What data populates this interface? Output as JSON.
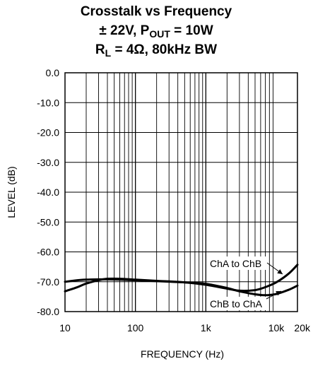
{
  "chart_data": {
    "type": "line",
    "title_lines": [
      {
        "parts": [
          {
            "t": "Crosstalk vs Frequency"
          }
        ]
      },
      {
        "parts": [
          {
            "t": "± 22V, P"
          },
          {
            "t": "OUT",
            "sub": true
          },
          {
            "t": " = 10W"
          }
        ]
      },
      {
        "parts": [
          {
            "t": "R"
          },
          {
            "t": "L",
            "sub": true
          },
          {
            "t": " = 4Ω, 80kHz BW"
          }
        ]
      }
    ],
    "xlabel": "FREQUENCY (Hz)",
    "ylabel": "LEVEL (dB)",
    "x_scale": "log",
    "xlim": [
      10,
      20000
    ],
    "ylim": [
      -80,
      0
    ],
    "grid": true,
    "x_ticks": [
      {
        "value": 10,
        "label": "10"
      },
      {
        "value": 100,
        "label": "100"
      },
      {
        "value": 1000,
        "label": "1k"
      },
      {
        "value": 10000,
        "label": "10k"
      },
      {
        "value": 20000,
        "label": "20k"
      }
    ],
    "y_ticks": [
      {
        "value": 0,
        "label": "0.0"
      },
      {
        "value": -10,
        "label": "-10.0"
      },
      {
        "value": -20,
        "label": "-20.0"
      },
      {
        "value": -30,
        "label": "-30.0"
      },
      {
        "value": -40,
        "label": "-40.0"
      },
      {
        "value": -50,
        "label": "-50.0"
      },
      {
        "value": -60,
        "label": "-60.0"
      },
      {
        "value": -70,
        "label": "-70.0"
      },
      {
        "value": -80,
        "label": "-80.0"
      }
    ],
    "series": [
      {
        "name": "ChA to ChB",
        "x": [
          10,
          15,
          20,
          30,
          40,
          60,
          100,
          200,
          500,
          1000,
          2000,
          3000,
          5000,
          7000,
          10000,
          15000,
          20000
        ],
        "y": [
          -73.2,
          -71.8,
          -70.6,
          -69.5,
          -69.0,
          -69.0,
          -69.3,
          -69.7,
          -70.2,
          -71.0,
          -72.3,
          -73.0,
          -72.8,
          -71.8,
          -70.2,
          -67.3,
          -64.3
        ]
      },
      {
        "name": "ChB to ChA",
        "x": [
          10,
          15,
          20,
          30,
          40,
          60,
          100,
          200,
          500,
          1000,
          2000,
          3000,
          5000,
          7000,
          10000,
          15000,
          20000
        ],
        "y": [
          -70.0,
          -69.5,
          -69.3,
          -69.2,
          -69.2,
          -69.3,
          -69.5,
          -69.8,
          -70.2,
          -70.7,
          -72.1,
          -73.2,
          -74.2,
          -74.5,
          -74.1,
          -72.7,
          -71.3
        ]
      }
    ],
    "annotations": [
      {
        "text": "ChA to ChB",
        "series": 0
      },
      {
        "text": "ChB to ChA",
        "series": 1
      }
    ]
  }
}
